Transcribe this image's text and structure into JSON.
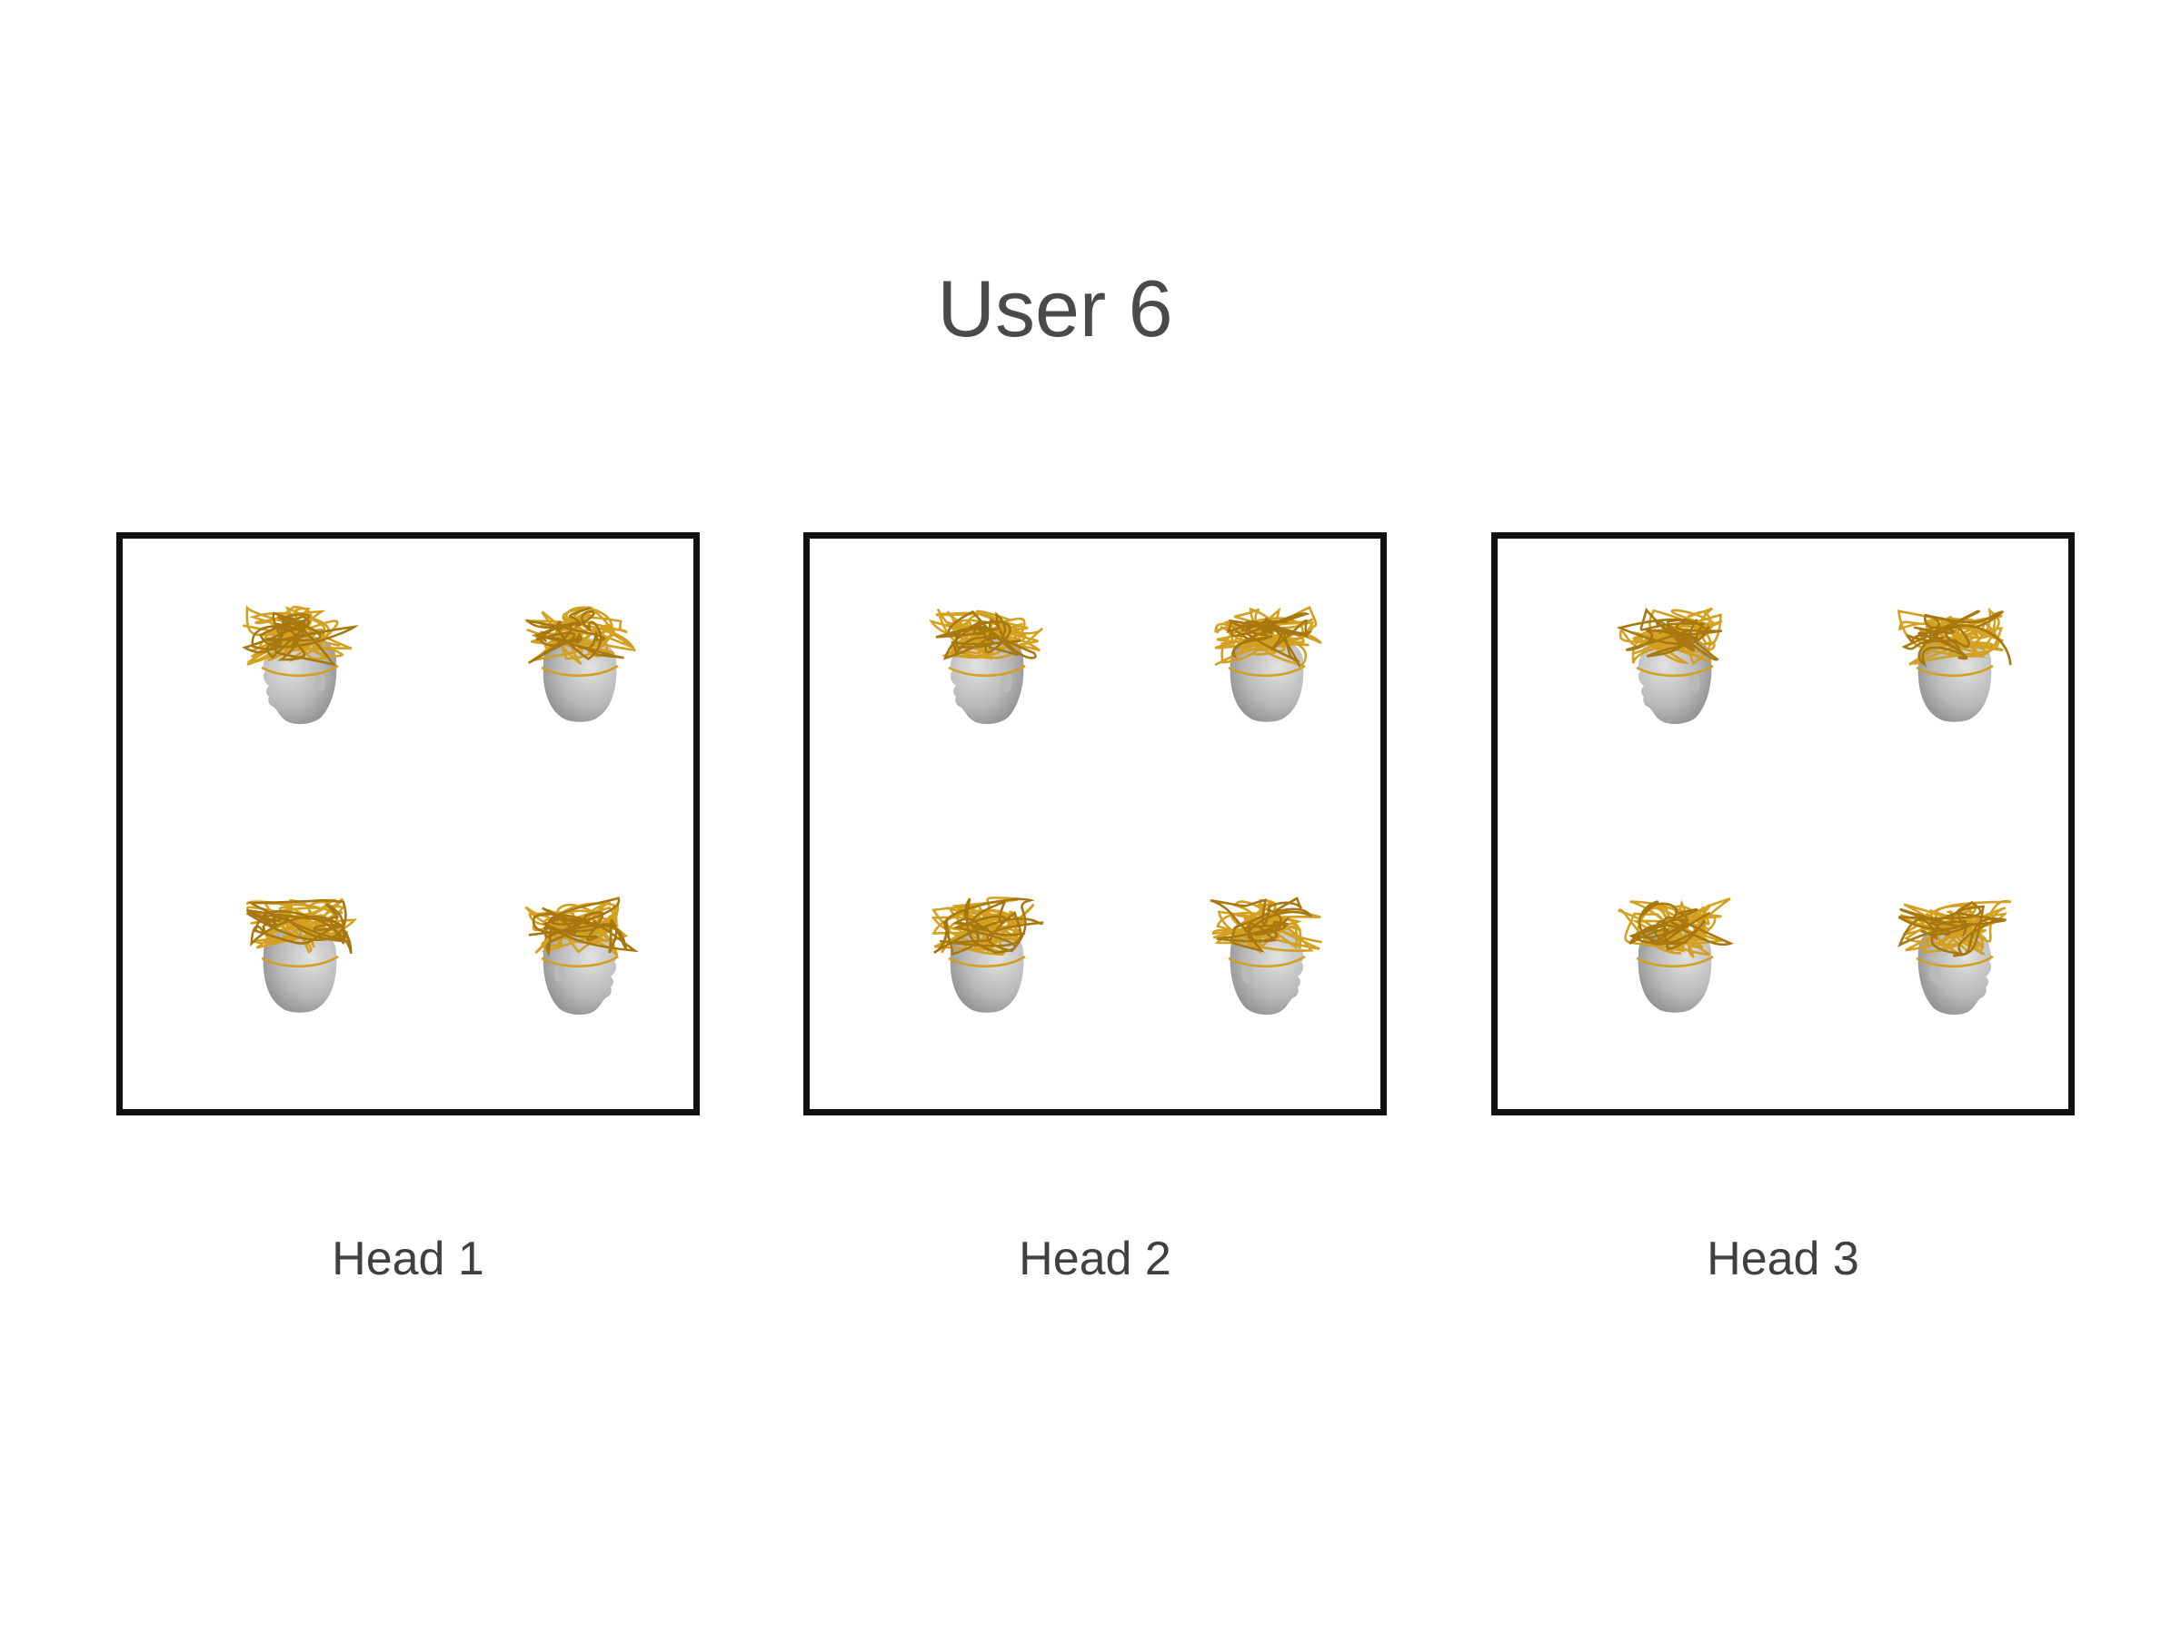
{
  "title": "User 6",
  "panels": [
    {
      "label": "Head 1"
    },
    {
      "label": "Head 2"
    },
    {
      "label": "Head 3"
    }
  ],
  "colors": {
    "wire": "#d4a020",
    "wire_dark": "#a87810",
    "head_light": "#e2e2e2",
    "head_mid": "#b9b9b9",
    "head_dark": "#8e8e8e",
    "frame": "#111111",
    "title_text": "#4a4a4a"
  }
}
